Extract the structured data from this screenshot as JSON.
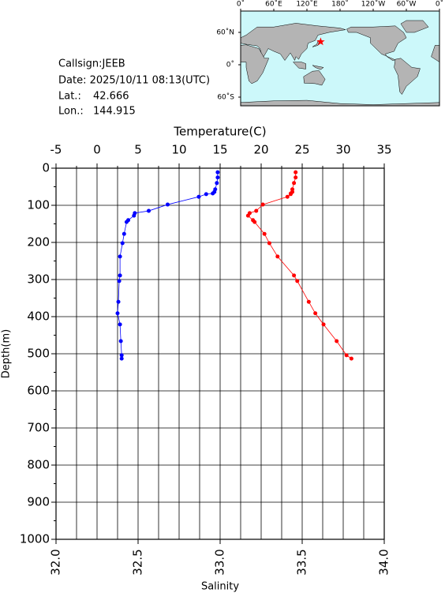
{
  "info": {
    "callsign": "Callsign:JEEB",
    "date": "Date:  2025/10/11 08:13(UTC)",
    "lat_label": "Lat.:",
    "lat": 42.666,
    "lon_label": "Lon.:",
    "lon": 144.915
  },
  "map": {
    "lon_labels": [
      "0˚",
      "60˚E",
      "120˚E",
      "180˚",
      "120˚W",
      "60˚W",
      "0˚"
    ],
    "lat_labels": [
      "60˚N",
      "0˚",
      "60˚S"
    ]
  },
  "chart_data": {
    "type": "profile",
    "xlabel": "Temperature(C)",
    "x2label": "Salinity",
    "ylabel": "Depth(m)",
    "xlim": [
      -5,
      35
    ],
    "xticks": [
      -5,
      0,
      5,
      10,
      15,
      20,
      25,
      30,
      35
    ],
    "x2lim": [
      32,
      34
    ],
    "x2ticks": [
      {
        "value": 32,
        "label": "32.0"
      },
      32.5,
      {
        "value": 33,
        "label": "33.0"
      },
      33.5,
      {
        "value": 34,
        "label": "34.0"
      }
    ],
    "ylim": [
      1000,
      0
    ],
    "yticks": [
      0,
      100,
      200,
      300,
      400,
      500,
      600,
      700,
      800,
      900,
      1000
    ],
    "grid": true,
    "y": [
      11,
      25,
      40,
      57,
      64,
      68,
      70,
      77,
      98,
      115,
      121,
      128,
      140,
      145,
      177,
      202,
      238,
      289,
      304,
      360,
      391,
      421,
      466,
      504,
      513
    ],
    "series": [
      {
        "name": "Temperature",
        "color": "#0000ff",
        "axis": "x",
        "values": [
          14.7,
          14.7,
          14.6,
          14.4,
          14.3,
          14.1,
          13.3,
          12.4,
          8.6,
          6.3,
          4.6,
          4.5,
          3.8,
          3.6,
          3.3,
          3.1,
          2.8,
          2.8,
          2.7,
          2.6,
          2.5,
          2.8,
          2.9,
          3.0,
          3.0
        ]
      },
      {
        "name": "Salinity",
        "color": "#ff0000",
        "axis": "x2",
        "values": [
          33.46,
          33.46,
          33.45,
          33.44,
          33.44,
          33.43,
          33.43,
          33.41,
          33.26,
          33.22,
          33.18,
          33.17,
          33.2,
          33.21,
          33.27,
          33.3,
          33.35,
          33.45,
          33.47,
          33.54,
          33.58,
          33.63,
          33.71,
          33.77,
          33.8
        ]
      }
    ]
  }
}
